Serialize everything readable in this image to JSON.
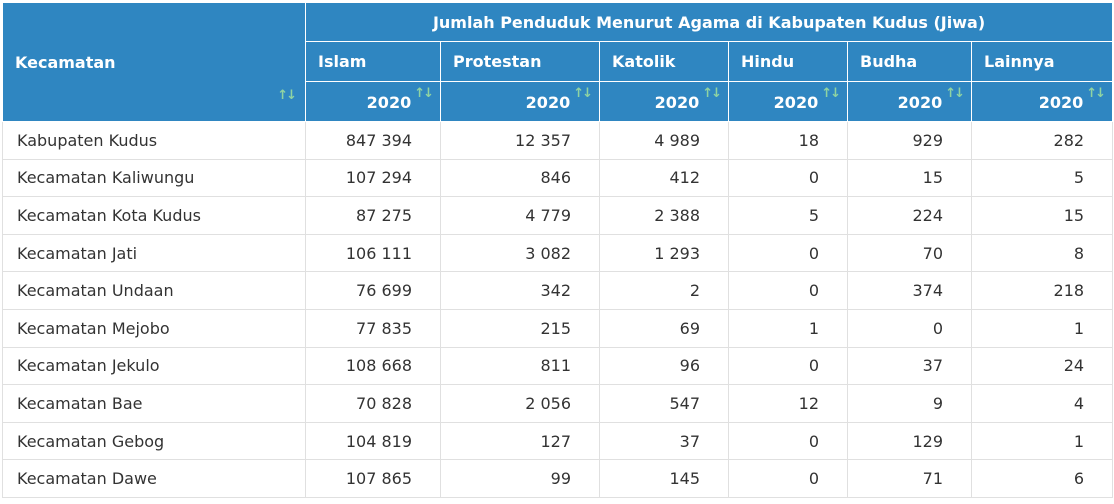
{
  "table": {
    "group_title": "Jumlah Penduduk Menurut Agama di Kabupaten Kudus (Jiwa)",
    "region_header": "Kecamatan",
    "columns": [
      {
        "label": "Islam",
        "year": "2020"
      },
      {
        "label": "Protestan",
        "year": "2020"
      },
      {
        "label": "Katolik",
        "year": "2020"
      },
      {
        "label": "Hindu",
        "year": "2020"
      },
      {
        "label": "Budha",
        "year": "2020"
      },
      {
        "label": "Lainnya",
        "year": "2020"
      }
    ],
    "rows": [
      {
        "region": "Kabupaten Kudus",
        "values": [
          "847 394",
          "12 357",
          "4 989",
          "18",
          "929",
          "282"
        ]
      },
      {
        "region": "Kecamatan Kaliwungu",
        "values": [
          "107 294",
          "846",
          "412",
          "0",
          "15",
          "5"
        ]
      },
      {
        "region": "Kecamatan Kota Kudus",
        "values": [
          "87 275",
          "4 779",
          "2 388",
          "5",
          "224",
          "15"
        ]
      },
      {
        "region": "Kecamatan Jati",
        "values": [
          "106 111",
          "3 082",
          "1 293",
          "0",
          "70",
          "8"
        ]
      },
      {
        "region": "Kecamatan Undaan",
        "values": [
          "76 699",
          "342",
          "2",
          "0",
          "374",
          "218"
        ]
      },
      {
        "region": "Kecamatan Mejobo",
        "values": [
          "77 835",
          "215",
          "69",
          "1",
          "0",
          "1"
        ]
      },
      {
        "region": "Kecamatan Jekulo",
        "values": [
          "108 668",
          "811",
          "96",
          "0",
          "37",
          "24"
        ]
      },
      {
        "region": "Kecamatan Bae",
        "values": [
          "70 828",
          "2 056",
          "547",
          "12",
          "9",
          "4"
        ]
      },
      {
        "region": "Kecamatan Gebog",
        "values": [
          "104 819",
          "127",
          "37",
          "0",
          "129",
          "1"
        ]
      },
      {
        "region": "Kecamatan Dawe",
        "values": [
          "107 865",
          "99",
          "145",
          "0",
          "71",
          "6"
        ]
      }
    ]
  },
  "icons": {
    "sort": "sort-arrows-icon"
  },
  "colors": {
    "header_bg": "#2f86c1",
    "header_text": "#ffffff",
    "sort_icon": "#8fd3a2",
    "border": "#e0e0e0"
  }
}
